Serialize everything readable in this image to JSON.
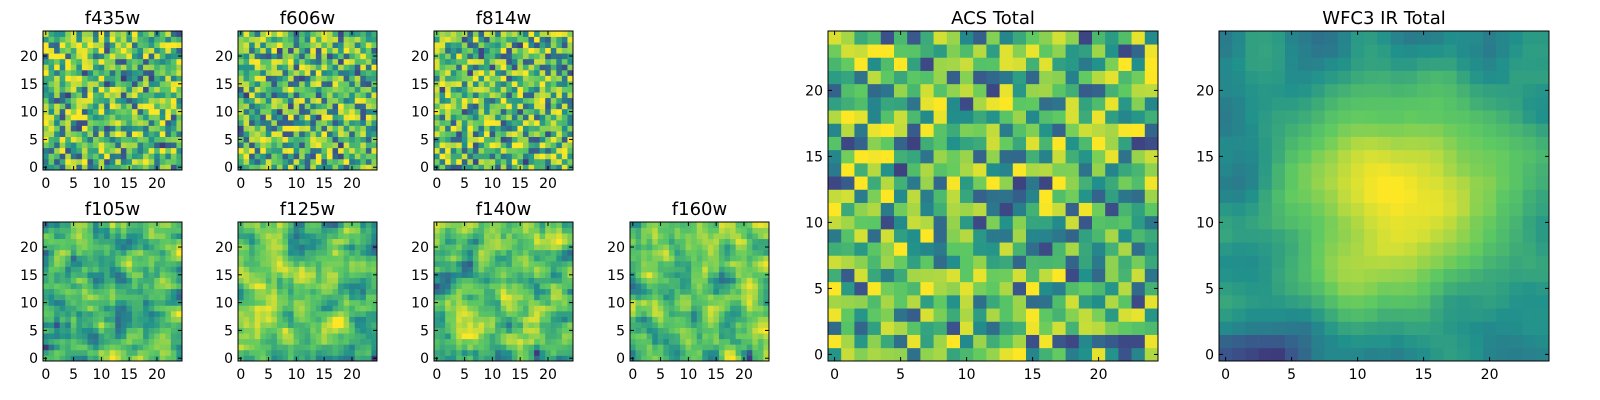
{
  "colormap": [
    "#440154",
    "#3b528b",
    "#21918c",
    "#5ec962",
    "#fde725"
  ],
  "chart_data": [
    {
      "type": "heatmap",
      "title": "f435w",
      "grid_size": 25,
      "xticks": [
        0,
        5,
        10,
        15,
        20
      ],
      "yticks": [
        0,
        5,
        10,
        15,
        20
      ],
      "texture": "noise",
      "seed": 11
    },
    {
      "type": "heatmap",
      "title": "f606w",
      "grid_size": 25,
      "xticks": [
        0,
        5,
        10,
        15,
        20
      ],
      "yticks": [
        0,
        5,
        10,
        15,
        20
      ],
      "texture": "noise",
      "seed": 23
    },
    {
      "type": "heatmap",
      "title": "f814w",
      "grid_size": 25,
      "xticks": [
        0,
        5,
        10,
        15,
        20
      ],
      "yticks": [
        0,
        5,
        10,
        15,
        20
      ],
      "texture": "noise",
      "seed": 37
    },
    {
      "type": "heatmap",
      "title": "f105w",
      "grid_size": 25,
      "xticks": [
        0,
        5,
        10,
        15,
        20
      ],
      "yticks": [
        0,
        5,
        10,
        15,
        20
      ],
      "texture": "smooth",
      "seed": 41
    },
    {
      "type": "heatmap",
      "title": "f125w",
      "grid_size": 25,
      "xticks": [
        0,
        5,
        10,
        15,
        20
      ],
      "yticks": [
        0,
        5,
        10,
        15,
        20
      ],
      "texture": "smooth",
      "seed": 53
    },
    {
      "type": "heatmap",
      "title": "f140w",
      "grid_size": 25,
      "xticks": [
        0,
        5,
        10,
        15,
        20
      ],
      "yticks": [
        0,
        5,
        10,
        15,
        20
      ],
      "texture": "smooth",
      "seed": 67
    },
    {
      "type": "heatmap",
      "title": "f160w",
      "grid_size": 25,
      "xticks": [
        0,
        5,
        10,
        15,
        20
      ],
      "yticks": [
        0,
        5,
        10,
        15,
        20
      ],
      "texture": "smooth",
      "seed": 79
    },
    {
      "type": "heatmap",
      "title": "ACS Total",
      "grid_size": 25,
      "xticks": [
        0,
        5,
        10,
        15,
        20
      ],
      "yticks": [
        0,
        5,
        10,
        15,
        20
      ],
      "texture": "noise",
      "seed": 83
    },
    {
      "type": "heatmap",
      "title": "WFC3 IR Total",
      "grid_size": 25,
      "xticks": [
        0,
        5,
        10,
        15,
        20
      ],
      "yticks": [
        0,
        5,
        10,
        15,
        20
      ],
      "texture": "blob",
      "seed": 97
    }
  ]
}
